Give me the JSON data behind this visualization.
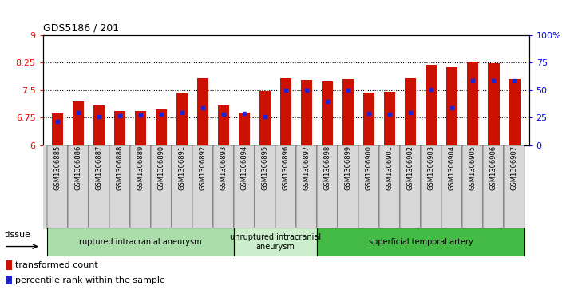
{
  "title": "GDS5186 / 201",
  "samples": [
    "GSM1306885",
    "GSM1306886",
    "GSM1306887",
    "GSM1306888",
    "GSM1306889",
    "GSM1306890",
    "GSM1306891",
    "GSM1306892",
    "GSM1306893",
    "GSM1306894",
    "GSM1306895",
    "GSM1306896",
    "GSM1306897",
    "GSM1306898",
    "GSM1306899",
    "GSM1306900",
    "GSM1306901",
    "GSM1306902",
    "GSM1306903",
    "GSM1306904",
    "GSM1306905",
    "GSM1306906",
    "GSM1306907"
  ],
  "bar_values": [
    6.85,
    7.18,
    7.08,
    6.93,
    6.93,
    6.97,
    7.42,
    7.82,
    7.08,
    6.88,
    7.46,
    7.82,
    7.78,
    7.72,
    7.8,
    7.42,
    7.45,
    7.82,
    8.18,
    8.12,
    8.28,
    8.22,
    7.8
  ],
  "percentile_values": [
    6.65,
    6.87,
    6.78,
    6.79,
    6.82,
    6.84,
    6.87,
    7.02,
    6.84,
    6.86,
    6.77,
    7.48,
    7.48,
    7.18,
    7.48,
    6.85,
    6.83,
    6.88,
    7.52,
    7.02,
    7.75,
    7.75,
    7.75
  ],
  "ylim": [
    6,
    9
  ],
  "yticks": [
    6,
    6.75,
    7.5,
    8.25,
    9
  ],
  "ytick_labels": [
    "6",
    "6.75",
    "7.5",
    "8.25",
    "9"
  ],
  "right_yticks": [
    0,
    25,
    50,
    75,
    100
  ],
  "right_ytick_labels": [
    "0",
    "25",
    "50",
    "75",
    "100%"
  ],
  "bar_color": "#cc1100",
  "dot_color": "#2222cc",
  "bar_width": 0.55,
  "ymin": 6,
  "groups": [
    {
      "label": "ruptured intracranial aneurysm",
      "start": 0,
      "end": 9,
      "color": "#aaddaa"
    },
    {
      "label": "unruptured intracranial\naneurysm",
      "start": 9,
      "end": 13,
      "color": "#cceecc"
    },
    {
      "label": "superficial temporal artery",
      "start": 13,
      "end": 23,
      "color": "#44bb44"
    }
  ],
  "background_color": "#d8d8d8",
  "plot_bg": "#ffffff",
  "grid_dotted_lines": [
    6.75,
    7.5,
    8.25
  ],
  "tissue_label": "tissue"
}
